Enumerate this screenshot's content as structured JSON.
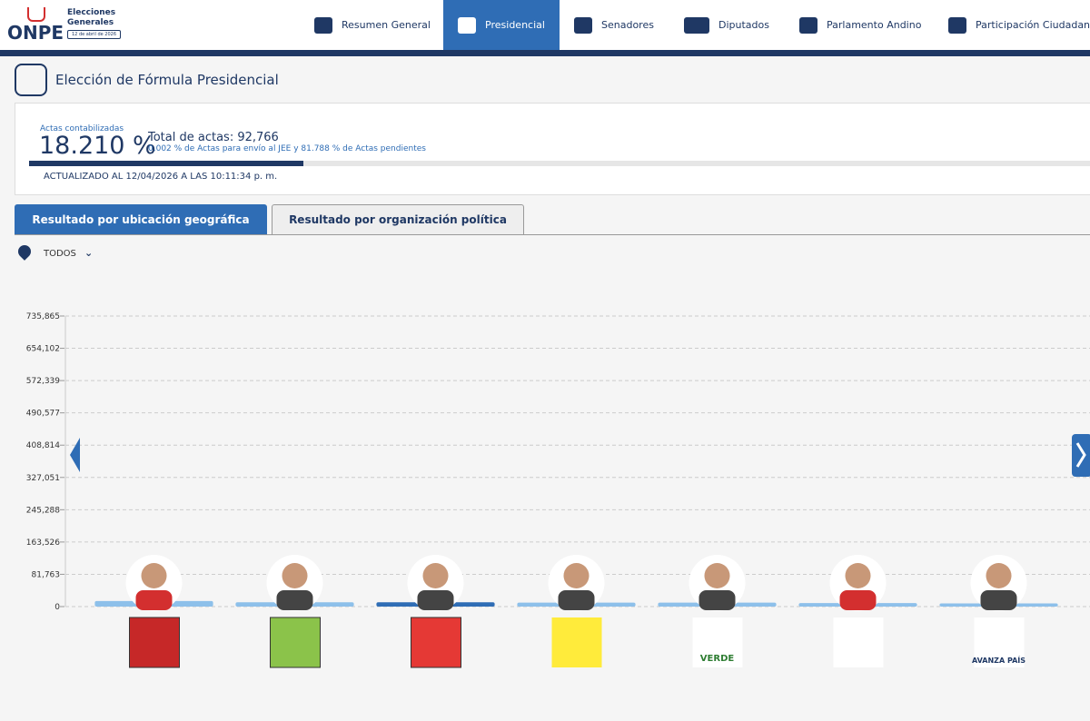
{
  "header": {
    "logo": "ONPE",
    "event_line1": "Elecciones",
    "event_line2": "Generales",
    "event_date": "12 de abril de 2026"
  },
  "nav": [
    "Resumen General",
    "Presidencial",
    "Senadores",
    "Diputados",
    "Parlamento Andino",
    "Participación Ciudadana"
  ],
  "page_title": "Elección de Fórmula Presidencial",
  "summary": {
    "actas_caption": "Actas contabilizadas",
    "actas_pct": {
      "value": 18.21,
      "label": "18.210 %"
    },
    "total": "Total de actas: 92,766",
    "detail": "0.002 % de Actas para envío al JEE y 81.788 % de Actas pendientes",
    "updated": "ACTUALIZADO AL 12/04/2026 A LAS 10:11:34 p. m."
  },
  "tabs": [
    "Resultado por ubicación geográfica",
    "Resultado por organización política"
  ],
  "filter": "TODOS",
  "party_logo_text": [
    "VERDE",
    "AVANZA PAÍS"
  ],
  "chart_data": {
    "type": "bar",
    "categories": [
      null,
      null,
      null,
      null,
      null,
      null,
      null
    ],
    "values": [
      14000,
      11000,
      11000,
      10000,
      10000,
      9000,
      8000
    ],
    "colors": [
      "#8dc0ea",
      "#8dc0ea",
      "#2f6db5",
      "#8dc0ea",
      "#8dc0ea",
      "#8dc0ea",
      "#8dc0ea"
    ],
    "ylim": [
      0,
      735865
    ],
    "yticks": [
      0,
      {
        "value": 81763,
        "label": "81,763"
      },
      {
        "value": 163526,
        "label": "163,526"
      },
      {
        "value": 245288,
        "label": "245,288"
      },
      {
        "value": 327051,
        "label": "327,051"
      },
      {
        "value": 408814,
        "label": "408,814"
      },
      {
        "value": 490577,
        "label": "490,577"
      },
      {
        "value": 572339,
        "label": "572,339"
      },
      {
        "value": 654102,
        "label": "654,102"
      },
      {
        "value": 735865,
        "label": "735,865"
      }
    ],
    "grid": true
  }
}
